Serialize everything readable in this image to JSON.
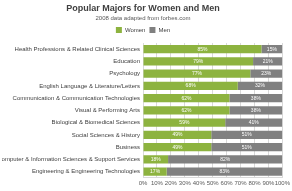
{
  "chart_data": {
    "type": "bar",
    "title": "Popular Majors for Women and Men",
    "subtitle": "2008 data adapted from forbes.com",
    "orientation": "horizontal",
    "stacked": true,
    "categories": [
      "Health Professions & Related Clinical Sciences",
      "Education",
      "Psychology",
      "English Language & Literature/Letters",
      "Communication & Communication Technologies",
      "Visual & Performing Arts",
      "Biological & Biomedical Sciences",
      "Social Sciences & History",
      "Business",
      "Computer & Information Sciences & Support Services",
      "Engineering & Engineering Technologies"
    ],
    "series": [
      {
        "name": "Women",
        "color": "#8db33f",
        "values": [
          85,
          79,
          77,
          68,
          62,
          62,
          59,
          49,
          49,
          18,
          17
        ],
        "value_labels": [
          "85%",
          "79%",
          "77%",
          "68%",
          "62%",
          "62%",
          "59%",
          "49%",
          "49%",
          "18%",
          "17%"
        ]
      },
      {
        "name": "Men",
        "color": "#808080",
        "values": [
          15,
          21,
          23,
          32,
          38,
          38,
          41,
          51,
          51,
          82,
          83
        ],
        "value_labels": [
          "15%",
          "21%",
          "23%",
          "32%",
          "38%",
          "38%",
          "41%",
          "51%",
          "51%",
          "82%",
          "83%"
        ]
      }
    ],
    "xlim": [
      0,
      100
    ],
    "xticks": [
      {
        "value": 0,
        "label": "0%"
      },
      {
        "value": 10,
        "label": "10%"
      },
      {
        "value": 20,
        "label": "20%"
      },
      {
        "value": 30,
        "label": "30%"
      },
      {
        "value": 40,
        "label": "40%"
      },
      {
        "value": 50,
        "label": "50%"
      },
      {
        "value": 60,
        "label": "60%"
      },
      {
        "value": 70,
        "label": "70%"
      },
      {
        "value": 80,
        "label": "80%"
      },
      {
        "value": 90,
        "label": "90%"
      },
      {
        "value": 100,
        "label": "100%"
      }
    ],
    "grid": true,
    "legend": "top",
    "data_labels": true
  }
}
